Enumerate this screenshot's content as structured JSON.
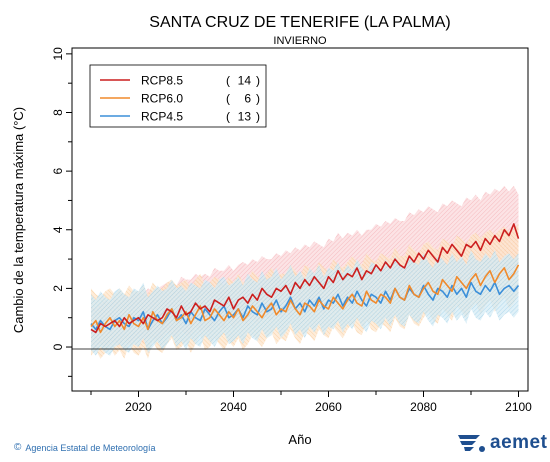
{
  "chart_data": {
    "type": "line",
    "title": "SANTA CRUZ DE TENERIFE (LA PALMA)",
    "subtitle": "INVIERNO",
    "xlabel": "Año",
    "ylabel": "Cambio  de la temperatura máxima (°C)",
    "xlim": [
      2006,
      2102
    ],
    "ylim": [
      -1.5,
      10.2
    ],
    "xticks": [
      2020,
      2040,
      2060,
      2080,
      2100
    ],
    "yticks": [
      0,
      2,
      4,
      6,
      8,
      10
    ],
    "legend_placement": "top-left",
    "x": [
      2010,
      2011,
      2012,
      2013,
      2014,
      2015,
      2016,
      2017,
      2018,
      2019,
      2020,
      2021,
      2022,
      2023,
      2024,
      2025,
      2026,
      2027,
      2028,
      2029,
      2030,
      2031,
      2032,
      2033,
      2034,
      2035,
      2036,
      2037,
      2038,
      2039,
      2040,
      2041,
      2042,
      2043,
      2044,
      2045,
      2046,
      2047,
      2048,
      2049,
      2050,
      2051,
      2052,
      2053,
      2054,
      2055,
      2056,
      2057,
      2058,
      2059,
      2060,
      2061,
      2062,
      2063,
      2064,
      2065,
      2066,
      2067,
      2068,
      2069,
      2070,
      2071,
      2072,
      2073,
      2074,
      2075,
      2076,
      2077,
      2078,
      2079,
      2080,
      2081,
      2082,
      2083,
      2084,
      2085,
      2086,
      2087,
      2088,
      2089,
      2090,
      2091,
      2092,
      2093,
      2094,
      2095,
      2096,
      2097,
      2098,
      2099,
      2100
    ],
    "series": [
      {
        "name": "RCP8.5",
        "count": "14",
        "color": "#cc1f1f",
        "band_color": "#f6b8bc",
        "mean": [
          0.6,
          0.5,
          0.8,
          0.7,
          0.8,
          0.9,
          0.7,
          1.0,
          0.8,
          0.9,
          1.0,
          0.8,
          1.1,
          1.0,
          0.9,
          1.0,
          1.3,
          1.2,
          1.0,
          1.4,
          1.1,
          1.2,
          1.5,
          1.3,
          1.4,
          1.2,
          1.6,
          1.5,
          1.4,
          1.7,
          1.3,
          1.6,
          1.7,
          1.5,
          1.8,
          1.6,
          2.0,
          1.8,
          1.7,
          2.0,
          1.9,
          2.1,
          1.8,
          2.2,
          2.0,
          2.3,
          2.1,
          2.4,
          2.2,
          2.0,
          2.4,
          2.2,
          2.6,
          2.3,
          2.5,
          2.4,
          2.7,
          2.3,
          2.6,
          2.5,
          2.8,
          2.6,
          2.9,
          2.7,
          3.0,
          2.8,
          2.7,
          3.1,
          2.9,
          3.2,
          3.0,
          3.3,
          3.1,
          2.9,
          3.4,
          3.2,
          3.5,
          3.3,
          3.1,
          3.5,
          3.4,
          3.6,
          3.3,
          3.7,
          3.5,
          3.8,
          3.6,
          4.0,
          3.8,
          4.2,
          3.7
        ],
        "upper": [
          1.4,
          1.3,
          1.5,
          1.6,
          1.5,
          1.7,
          1.6,
          1.8,
          1.7,
          1.8,
          1.9,
          1.8,
          2.0,
          1.9,
          2.0,
          2.1,
          2.2,
          2.2,
          2.1,
          2.4,
          2.3,
          2.3,
          2.5,
          2.4,
          2.5,
          2.4,
          2.7,
          2.6,
          2.6,
          2.8,
          2.6,
          2.8,
          2.9,
          2.8,
          3.0,
          2.9,
          3.1,
          3.0,
          3.0,
          3.2,
          3.1,
          3.3,
          3.2,
          3.4,
          3.3,
          3.5,
          3.4,
          3.6,
          3.5,
          3.4,
          3.7,
          3.6,
          3.9,
          3.7,
          3.9,
          3.8,
          4.0,
          3.8,
          4.0,
          4.0,
          4.2,
          4.1,
          4.3,
          4.2,
          4.4,
          4.3,
          4.3,
          4.6,
          4.5,
          4.7,
          4.6,
          4.8,
          4.7,
          4.6,
          4.9,
          4.8,
          5.0,
          4.9,
          4.8,
          5.1,
          5.0,
          5.2,
          5.0,
          5.3,
          5.2,
          5.4,
          5.3,
          5.5,
          5.3,
          5.5,
          5.2
        ],
        "lower": [
          0.0,
          -0.1,
          0.1,
          0.0,
          0.1,
          0.2,
          0.0,
          0.3,
          0.1,
          0.2,
          0.3,
          0.1,
          0.3,
          0.3,
          0.2,
          0.3,
          0.5,
          0.4,
          0.3,
          0.6,
          0.4,
          0.4,
          0.7,
          0.5,
          0.6,
          0.5,
          0.8,
          0.7,
          0.6,
          0.9,
          0.6,
          0.8,
          0.9,
          0.7,
          1.0,
          0.8,
          1.1,
          1.0,
          0.9,
          1.1,
          1.0,
          1.2,
          1.0,
          1.3,
          1.1,
          1.3,
          1.2,
          1.4,
          1.3,
          1.1,
          1.4,
          1.3,
          1.5,
          1.3,
          1.5,
          1.4,
          1.6,
          1.4,
          1.6,
          1.5,
          1.7,
          1.6,
          1.8,
          1.6,
          1.8,
          1.7,
          1.6,
          1.9,
          1.8,
          2.0,
          1.8,
          2.0,
          1.9,
          1.8,
          2.1,
          2.0,
          2.2,
          2.0,
          1.9,
          2.2,
          2.1,
          2.3,
          2.1,
          2.4,
          2.2,
          2.4,
          2.3,
          2.5,
          2.4,
          2.6,
          2.4
        ]
      },
      {
        "name": "RCP6.0",
        "count": "6",
        "color": "#f08a2c",
        "band_color": "#fbd3a8",
        "mean": [
          0.7,
          0.9,
          0.5,
          0.8,
          1.0,
          0.7,
          0.9,
          0.6,
          1.1,
          0.8,
          0.7,
          1.0,
          0.6,
          1.2,
          0.9,
          0.8,
          1.1,
          1.3,
          0.9,
          1.0,
          1.2,
          0.8,
          1.1,
          1.4,
          0.9,
          1.0,
          1.3,
          1.1,
          0.9,
          1.2,
          1.0,
          1.3,
          0.9,
          1.1,
          1.4,
          1.2,
          1.0,
          1.3,
          1.5,
          1.1,
          1.3,
          1.2,
          1.6,
          1.3,
          1.1,
          1.5,
          1.4,
          1.2,
          1.6,
          1.4,
          1.3,
          1.7,
          1.5,
          1.3,
          1.6,
          1.8,
          1.5,
          1.4,
          1.9,
          1.6,
          1.5,
          1.8,
          1.7,
          1.5,
          2.0,
          1.7,
          1.6,
          2.1,
          1.8,
          1.7,
          2.0,
          2.2,
          1.9,
          1.8,
          2.3,
          2.1,
          1.9,
          2.4,
          2.2,
          2.0,
          2.3,
          2.5,
          2.1,
          2.4,
          2.6,
          2.2,
          2.5,
          2.7,
          2.3,
          2.5,
          2.8
        ],
        "upper": [
          2.0,
          1.8,
          1.7,
          1.9,
          2.0,
          1.8,
          2.0,
          1.8,
          2.1,
          1.9,
          1.9,
          2.1,
          1.8,
          2.2,
          2.0,
          2.0,
          2.2,
          2.3,
          2.1,
          2.2,
          2.3,
          2.0,
          2.3,
          2.5,
          2.1,
          2.2,
          2.4,
          2.3,
          2.1,
          2.4,
          2.2,
          2.5,
          2.2,
          2.3,
          2.6,
          2.4,
          2.3,
          2.5,
          2.7,
          2.4,
          2.5,
          2.5,
          2.8,
          2.6,
          2.4,
          2.8,
          2.7,
          2.5,
          2.9,
          2.7,
          2.6,
          3.0,
          2.8,
          2.7,
          2.9,
          3.1,
          2.9,
          2.8,
          3.2,
          3.0,
          2.9,
          3.2,
          3.1,
          3.0,
          3.4,
          3.1,
          3.1,
          3.5,
          3.3,
          3.2,
          3.5,
          3.6,
          3.4,
          3.3,
          3.7,
          3.6,
          3.4,
          3.8,
          3.7,
          3.5,
          3.8,
          3.9,
          3.7,
          3.9,
          4.0,
          3.8,
          4.0,
          4.1,
          3.9,
          4.0,
          4.2
        ],
        "lower": [
          -0.3,
          -0.1,
          -0.4,
          -0.2,
          0.0,
          -0.3,
          -0.1,
          -0.4,
          0.1,
          -0.2,
          -0.3,
          0.0,
          -0.4,
          0.2,
          -0.1,
          -0.2,
          0.1,
          0.3,
          -0.1,
          0.0,
          0.2,
          -0.2,
          0.1,
          0.4,
          -0.1,
          0.0,
          0.3,
          0.1,
          -0.1,
          0.2,
          0.0,
          0.3,
          -0.1,
          0.1,
          0.4,
          0.2,
          0.0,
          0.3,
          0.5,
          0.1,
          0.3,
          0.2,
          0.6,
          0.3,
          0.1,
          0.5,
          0.4,
          0.2,
          0.6,
          0.4,
          0.3,
          0.7,
          0.5,
          0.3,
          0.6,
          0.8,
          0.5,
          0.4,
          0.9,
          0.6,
          0.5,
          0.8,
          0.7,
          0.5,
          1.0,
          0.7,
          0.6,
          1.1,
          0.8,
          0.7,
          1.0,
          1.2,
          0.9,
          0.8,
          1.3,
          1.1,
          0.9,
          1.4,
          1.2,
          1.0,
          1.3,
          1.5,
          1.1,
          1.4,
          1.6,
          1.2,
          1.5,
          1.7,
          1.3,
          1.5,
          1.8
        ]
      },
      {
        "name": "RCP4.5",
        "count": "13",
        "color": "#3b8fd9",
        "band_color": "#a9d8ee",
        "mean": [
          0.8,
          0.6,
          0.9,
          0.7,
          0.6,
          0.9,
          1.0,
          0.8,
          0.7,
          1.0,
          0.9,
          1.2,
          0.6,
          0.9,
          1.1,
          0.8,
          1.0,
          1.3,
          0.9,
          1.1,
          0.8,
          1.2,
          1.0,
          0.9,
          1.3,
          1.1,
          0.9,
          1.2,
          1.4,
          1.0,
          1.1,
          1.3,
          1.0,
          1.4,
          1.2,
          1.1,
          1.5,
          1.2,
          1.3,
          1.6,
          1.2,
          1.4,
          1.7,
          1.3,
          1.5,
          1.2,
          1.6,
          1.4,
          1.7,
          1.3,
          1.6,
          1.5,
          1.8,
          1.4,
          1.7,
          1.5,
          1.9,
          1.6,
          1.4,
          1.8,
          1.7,
          1.5,
          1.9,
          1.6,
          2.0,
          1.7,
          1.6,
          2.0,
          1.8,
          1.7,
          2.1,
          1.8,
          1.6,
          2.0,
          1.9,
          1.7,
          2.1,
          1.8,
          2.0,
          1.7,
          2.2,
          1.9,
          1.8,
          2.1,
          1.9,
          2.2,
          1.8,
          2.0,
          2.1,
          1.9,
          2.1
        ],
        "upper": [
          1.8,
          1.6,
          1.9,
          1.7,
          1.6,
          1.9,
          2.0,
          1.8,
          1.7,
          2.0,
          1.9,
          2.2,
          1.7,
          1.9,
          2.1,
          1.9,
          2.0,
          2.3,
          2.0,
          2.1,
          1.9,
          2.2,
          2.1,
          2.0,
          2.3,
          2.2,
          2.0,
          2.3,
          2.4,
          2.1,
          2.2,
          2.4,
          2.1,
          2.5,
          2.3,
          2.2,
          2.6,
          2.3,
          2.4,
          2.7,
          2.3,
          2.5,
          2.8,
          2.4,
          2.6,
          2.3,
          2.7,
          2.5,
          2.8,
          2.4,
          2.7,
          2.6,
          2.9,
          2.5,
          2.8,
          2.6,
          3.0,
          2.7,
          2.5,
          2.9,
          2.8,
          2.6,
          3.0,
          2.7,
          3.1,
          2.8,
          2.7,
          3.1,
          2.9,
          2.8,
          3.2,
          2.9,
          2.7,
          3.1,
          3.0,
          2.8,
          3.2,
          2.9,
          3.1,
          2.8,
          3.3,
          3.0,
          2.9,
          3.2,
          3.0,
          3.3,
          2.9,
          3.1,
          3.2,
          3.0,
          3.2
        ],
        "lower": [
          -0.1,
          -0.3,
          0.0,
          -0.2,
          -0.3,
          0.0,
          0.1,
          -0.1,
          -0.2,
          0.1,
          0.0,
          0.3,
          -0.2,
          0.0,
          0.2,
          -0.1,
          0.1,
          0.4,
          0.0,
          0.2,
          -0.1,
          0.3,
          0.1,
          0.0,
          0.4,
          0.2,
          0.0,
          0.3,
          0.5,
          0.1,
          0.2,
          0.4,
          0.1,
          0.5,
          0.3,
          0.2,
          0.6,
          0.3,
          0.4,
          0.7,
          0.3,
          0.5,
          0.8,
          0.4,
          0.6,
          0.3,
          0.7,
          0.5,
          0.8,
          0.4,
          0.7,
          0.6,
          0.9,
          0.5,
          0.8,
          0.6,
          1.0,
          0.7,
          0.5,
          0.9,
          0.8,
          0.6,
          1.0,
          0.7,
          1.1,
          0.8,
          0.7,
          1.1,
          0.9,
          0.8,
          1.2,
          0.9,
          0.7,
          1.1,
          1.0,
          0.8,
          1.2,
          0.9,
          1.1,
          0.8,
          1.3,
          1.0,
          0.9,
          1.2,
          1.0,
          1.3,
          0.9,
          1.1,
          1.2,
          1.0,
          1.2
        ]
      }
    ]
  },
  "footer": {
    "copyright_symbol": "©",
    "agency": "Agencia Estatal de Meteorología",
    "logo_text": "aemet"
  }
}
